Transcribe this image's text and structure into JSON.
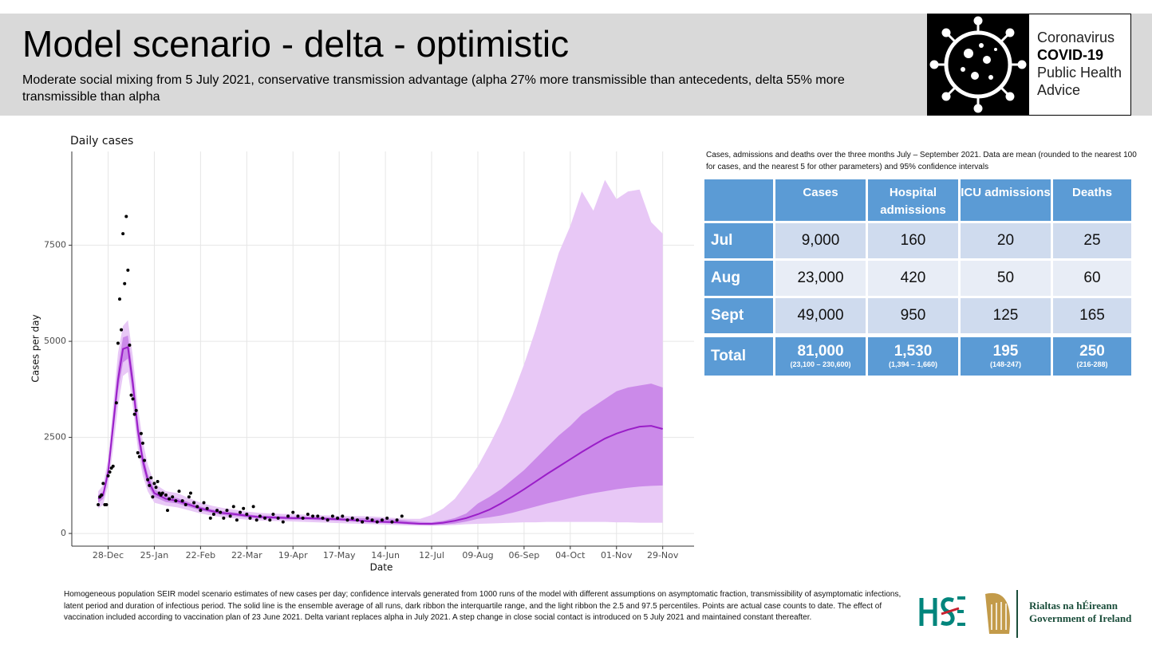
{
  "header": {
    "title": "Model scenario - delta - optimistic",
    "subtitle": "Moderate social mixing from 5 July 2021, conservative transmission advantage (alpha 27% more transmissible than antecedents, delta 55% more transmissible than alpha"
  },
  "logo": {
    "line1": "Coronavirus",
    "line2": "COVID-19",
    "line3": "Public Health",
    "line4": "Advice"
  },
  "chart_data": {
    "type": "line",
    "title": "Daily cases",
    "x_label": "Date",
    "y_label": "Cases per day",
    "grid": true,
    "xlim": [
      -22,
      355
    ],
    "ylim": [
      -330,
      9940
    ],
    "xticks": [
      {
        "value": 0,
        "label": "28-Dec"
      },
      {
        "value": 28,
        "label": "25-Jan"
      },
      {
        "value": 56,
        "label": "22-Feb"
      },
      {
        "value": 84,
        "label": "22-Mar"
      },
      {
        "value": 112,
        "label": "19-Apr"
      },
      {
        "value": 140,
        "label": "17-May"
      },
      {
        "value": 168,
        "label": "14-Jun"
      },
      {
        "value": 196,
        "label": "12-Jul"
      },
      {
        "value": 224,
        "label": "09-Aug"
      },
      {
        "value": 252,
        "label": "06-Sep"
      },
      {
        "value": 280,
        "label": "04-Oct"
      },
      {
        "value": 308,
        "label": "01-Nov"
      },
      {
        "value": 336,
        "label": "29-Nov"
      }
    ],
    "yticks": [
      0,
      2500,
      5000,
      7500
    ],
    "x": [
      -6,
      -3,
      0,
      3,
      6,
      9,
      12,
      15,
      18,
      21,
      24,
      28,
      35,
      42,
      49,
      56,
      63,
      70,
      77,
      84,
      91,
      98,
      105,
      112,
      119,
      126,
      133,
      140,
      147,
      154,
      161,
      168,
      175,
      182,
      189,
      196,
      203,
      210,
      217,
      224,
      231,
      238,
      245,
      252,
      259,
      266,
      273,
      280,
      287,
      294,
      301,
      308,
      315,
      322,
      329,
      336
    ],
    "bands": [
      {
        "color": "#e8c8f6",
        "lower": [
          650,
          750,
          1250,
          2200,
          3300,
          4100,
          4200,
          3300,
          2200,
          1500,
          1100,
          800,
          720,
          680,
          600,
          520,
          460,
          420,
          390,
          360,
          340,
          330,
          320,
          310,
          300,
          290,
          280,
          270,
          260,
          250,
          240,
          230,
          220,
          210,
          200,
          200,
          210,
          220,
          240,
          250,
          260,
          270,
          280,
          290,
          290,
          300,
          300,
          300,
          300,
          300,
          300,
          290,
          290,
          280,
          280,
          280
        ],
        "upper": [
          1100,
          1250,
          1950,
          3300,
          4700,
          5400,
          5550,
          4600,
          3300,
          2400,
          1800,
          1300,
          1100,
          1050,
          920,
          800,
          720,
          660,
          620,
          570,
          540,
          520,
          510,
          500,
          490,
          480,
          470,
          460,
          450,
          450,
          440,
          420,
          400,
          380,
          380,
          480,
          650,
          900,
          1300,
          1750,
          2300,
          2900,
          3600,
          4400,
          5300,
          6300,
          7300,
          8000,
          8900,
          8400,
          9200,
          8700,
          8900,
          8950,
          8100,
          7800
        ]
      },
      {
        "color": "#cb8ae9",
        "lower": [
          800,
          900,
          1450,
          2550,
          3700,
          4450,
          4550,
          3600,
          2450,
          1700,
          1250,
          950,
          820,
          780,
          690,
          600,
          530,
          480,
          450,
          420,
          390,
          380,
          370,
          360,
          360,
          350,
          340,
          330,
          320,
          300,
          280,
          270,
          260,
          240,
          230,
          220,
          230,
          260,
          310,
          380,
          420,
          470,
          540,
          620,
          700,
          780,
          850,
          920,
          990,
          1050,
          1100,
          1150,
          1190,
          1220,
          1240,
          1250
        ],
        "upper": [
          1000,
          1100,
          1750,
          3050,
          4300,
          5100,
          5150,
          4200,
          2950,
          2100,
          1550,
          1150,
          980,
          920,
          810,
          700,
          630,
          580,
          550,
          500,
          470,
          460,
          450,
          440,
          440,
          430,
          420,
          410,
          400,
          400,
          390,
          380,
          360,
          330,
          300,
          290,
          330,
          400,
          520,
          780,
          950,
          1150,
          1400,
          1650,
          1950,
          2250,
          2550,
          2800,
          3100,
          3300,
          3500,
          3700,
          3800,
          3850,
          3900,
          3800
        ]
      }
    ],
    "series": [
      {
        "color": "#9a1ec8",
        "values": [
          900,
          1000,
          1600,
          2800,
          4000,
          4800,
          4850,
          3900,
          2700,
          1900,
          1400,
          1050,
          900,
          850,
          750,
          650,
          580,
          530,
          500,
          460,
          430,
          420,
          410,
          400,
          400,
          390,
          380,
          370,
          350,
          330,
          310,
          300,
          290,
          270,
          250,
          250,
          280,
          330,
          400,
          500,
          620,
          780,
          960,
          1150,
          1350,
          1550,
          1740,
          1930,
          2120,
          2300,
          2470,
          2600,
          2700,
          2780,
          2800,
          2720
        ]
      }
    ],
    "points": {
      "color": "#000000",
      "x": [
        -6,
        -5,
        -4,
        -3,
        -2,
        -1,
        0,
        1,
        2,
        3,
        5,
        6,
        7,
        8,
        9,
        10,
        11,
        12,
        13,
        14,
        15,
        16,
        17,
        18,
        19,
        20,
        21,
        22,
        24,
        25,
        26,
        27,
        28,
        29,
        30,
        31,
        32,
        33,
        35,
        36,
        37,
        39,
        41,
        43,
        45,
        47,
        49,
        50,
        52,
        54,
        56,
        58,
        60,
        62,
        64,
        66,
        68,
        70,
        72,
        74,
        76,
        78,
        80,
        82,
        84,
        86,
        88,
        90,
        92,
        95,
        98,
        100,
        103,
        106,
        109,
        112,
        115,
        118,
        121,
        124,
        127,
        130,
        133,
        136,
        139,
        142,
        145,
        148,
        151,
        154,
        157,
        160,
        163,
        166,
        169,
        172,
        175,
        178
      ],
      "values": [
        750,
        950,
        1000,
        1300,
        750,
        750,
        1500,
        1600,
        1700,
        1750,
        3400,
        4950,
        6100,
        5300,
        7800,
        6500,
        8250,
        6850,
        4900,
        3600,
        3500,
        3100,
        3200,
        2100,
        2000,
        2600,
        2350,
        1900,
        1400,
        1250,
        1450,
        950,
        1300,
        1200,
        1350,
        1050,
        1000,
        1050,
        1000,
        600,
        900,
        950,
        850,
        1100,
        850,
        750,
        950,
        1050,
        800,
        700,
        600,
        800,
        650,
        400,
        500,
        600,
        550,
        400,
        600,
        450,
        700,
        350,
        550,
        650,
        500,
        400,
        700,
        350,
        450,
        400,
        350,
        500,
        400,
        300,
        450,
        550,
        450,
        400,
        500,
        450,
        450,
        400,
        350,
        450,
        400,
        450,
        350,
        400,
        350,
        300,
        400,
        350,
        300,
        350,
        400,
        300,
        350,
        450
      ]
    }
  },
  "table": {
    "caption": "Cases, admissions and deaths over the three months July – September 2021. Data are mean (rounded to the nearest 100 for cases, and the nearest 5 for other parameters) and 95% confidence intervals",
    "columns": [
      "Cases",
      "Hospital admissions",
      "ICU admissions",
      "Deaths"
    ],
    "rows": [
      {
        "label": "Jul",
        "cells": [
          "9,000",
          "160",
          "20",
          "25"
        ]
      },
      {
        "label": "Aug",
        "cells": [
          "23,000",
          "420",
          "50",
          "60"
        ]
      },
      {
        "label": "Sept",
        "cells": [
          "49,000",
          "950",
          "125",
          "165"
        ]
      }
    ],
    "total": {
      "label": "Total",
      "cells": [
        {
          "value": "81,000",
          "ci": "(23,100 – 230,600)"
        },
        {
          "value": "1,530",
          "ci": "(1,394 – 1,660)"
        },
        {
          "value": "195",
          "ci": "(148-247)"
        },
        {
          "value": "250",
          "ci": "(216-288)"
        }
      ]
    }
  },
  "footnote": "Homogeneous population SEIR model scenario estimates of new cases per day; confidence intervals generated from 1000 runs of the model with different assumptions on asymptomatic fraction, transmissibility of asymptomatic infections, latent period and duration of infectious period.  The solid line is the ensemble average of all runs, dark ribbon the interquartile range, and the light ribbon the 2.5 and 97.5 percentiles. Points are actual case counts to date. The effect of vaccination included according to vaccination plan of 23 June 2021. Delta variant replaces alpha in July 2021. A step change in close social contact is introduced on 5 July 2021 and maintained constant thereafter.",
  "government": {
    "line1": "Rialtas na hÉireann",
    "line2": "Government of Ireland"
  }
}
